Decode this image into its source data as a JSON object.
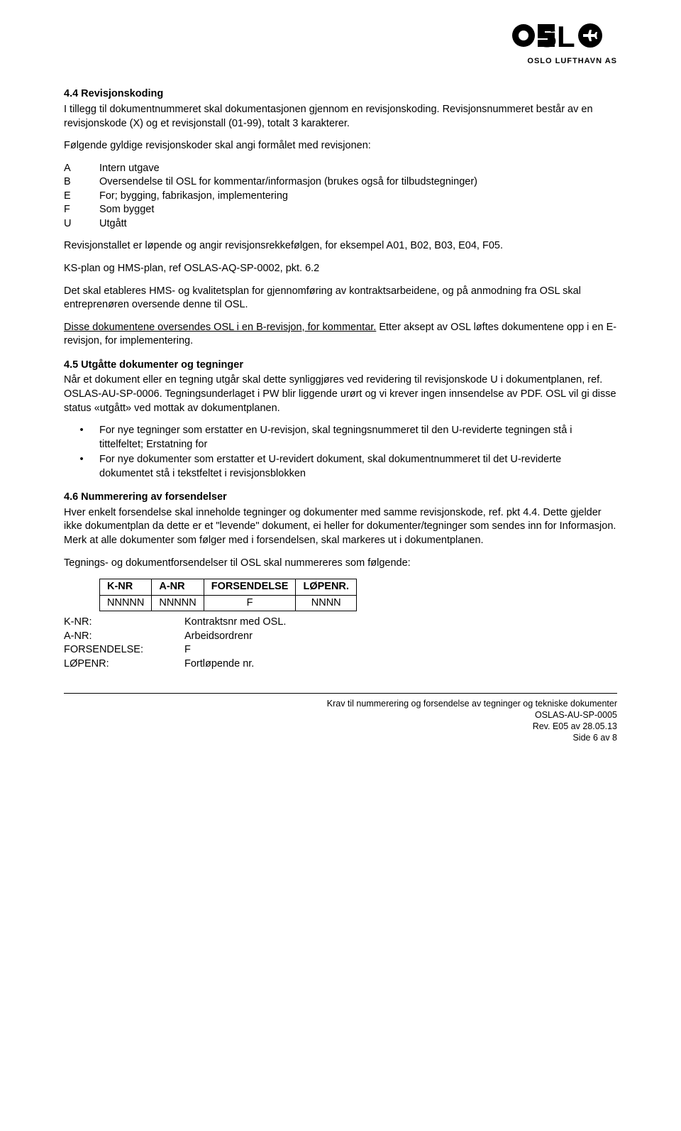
{
  "logo": {
    "text": "OSL",
    "subtitle": "OSLO LUFTHAVN AS"
  },
  "s44": {
    "heading": "4.4   Revisjonskoding",
    "p1": "I tillegg til dokumentnummeret skal dokumentasjonen gjennom en revisjonskoding. Revisjonsnummeret består av en revisjonskode (X) og et revisjonstall (01-99), totalt 3 karakterer.",
    "p2": "Følgende gyldige revisjonskoder skal angi formålet med revisjonen:",
    "codes": [
      {
        "k": "A",
        "v": "Intern utgave"
      },
      {
        "k": "B",
        "v": "Oversendelse til OSL for kommentar/informasjon (brukes også for tilbudstegninger)"
      },
      {
        "k": "E",
        "v": "For; bygging, fabrikasjon, implementering"
      },
      {
        "k": "F",
        "v": "Som bygget"
      },
      {
        "k": "U",
        "v": "Utgått"
      }
    ],
    "p3": "Revisjonstallet er løpende og angir revisjonsrekkefølgen, for eksempel A01, B02, B03, E04, F05.",
    "p4": "KS-plan og HMS-plan, ref OSLAS-AQ-SP-0002, pkt. 6.2",
    "p5": "Det skal etableres HMS- og kvalitetsplan for gjennomføring av kontraktsarbeidene, og på anmodning fra OSL skal entreprenøren oversende denne til OSL.",
    "p6a": "Disse dokumentene oversendes OSL i en B-revisjon, for kommentar.",
    "p6b": " Etter aksept av OSL løftes dokumentene opp i en E-revisjon, for implementering."
  },
  "s45": {
    "heading": "4.5   Utgåtte dokumenter og tegninger",
    "p1": "Når et dokument eller en tegning utgår skal dette synliggjøres ved revidering til revisjonskode U i dokumentplanen, ref. OSLAS-AU-SP-0006. Tegningsunderlaget i PW blir liggende urørt og vi krever ingen innsendelse av PDF. OSL vil gi disse status «utgått» ved mottak av dokumentplanen.",
    "bullets": [
      "For nye tegninger som erstatter en U-revisjon, skal tegningsnummeret til den U-reviderte tegningen stå i tittelfeltet; Erstatning for",
      "For nye dokumenter som erstatter et U-revidert dokument, skal dokumentnummeret til det U-reviderte dokumentet stå i tekstfeltet i revisjonsblokken"
    ]
  },
  "s46": {
    "heading": "4.6   Nummerering av forsendelser",
    "p1": "Hver enkelt forsendelse skal inneholde tegninger og dokumenter med samme revisjonskode, ref. pkt 4.4. Dette gjelder ikke dokumentplan da dette er et \"levende\" dokument, ei heller for dokumenter/tegninger som sendes inn for Informasjon. Merk at alle dokumenter som følger med i forsendelsen, skal markeres ut i dokumentplanen.",
    "p2": "Tegnings- og dokumentforsendelser til OSL skal nummereres som følgende:",
    "table": {
      "headers": [
        "K-NR",
        "A-NR",
        "FORSENDELSE",
        "LØPENR."
      ],
      "row": [
        "NNNNN",
        "NNNNN",
        "F",
        "NNNN"
      ]
    },
    "defs": [
      {
        "k": "K-NR:",
        "v": "Kontraktsnr med OSL."
      },
      {
        "k": "A-NR:",
        "v": "Arbeidsordrenr"
      },
      {
        "k": "FORSENDELSE:",
        "v": "F"
      },
      {
        "k": "LØPENR:",
        "v": "Fortløpende nr."
      }
    ]
  },
  "footer": {
    "l1": "Krav til nummerering og forsendelse av tegninger og tekniske dokumenter",
    "l2": "OSLAS-AU-SP-0005",
    "l3": "Rev. E05 av 28.05.13",
    "l4": "Side 6 av 8"
  }
}
